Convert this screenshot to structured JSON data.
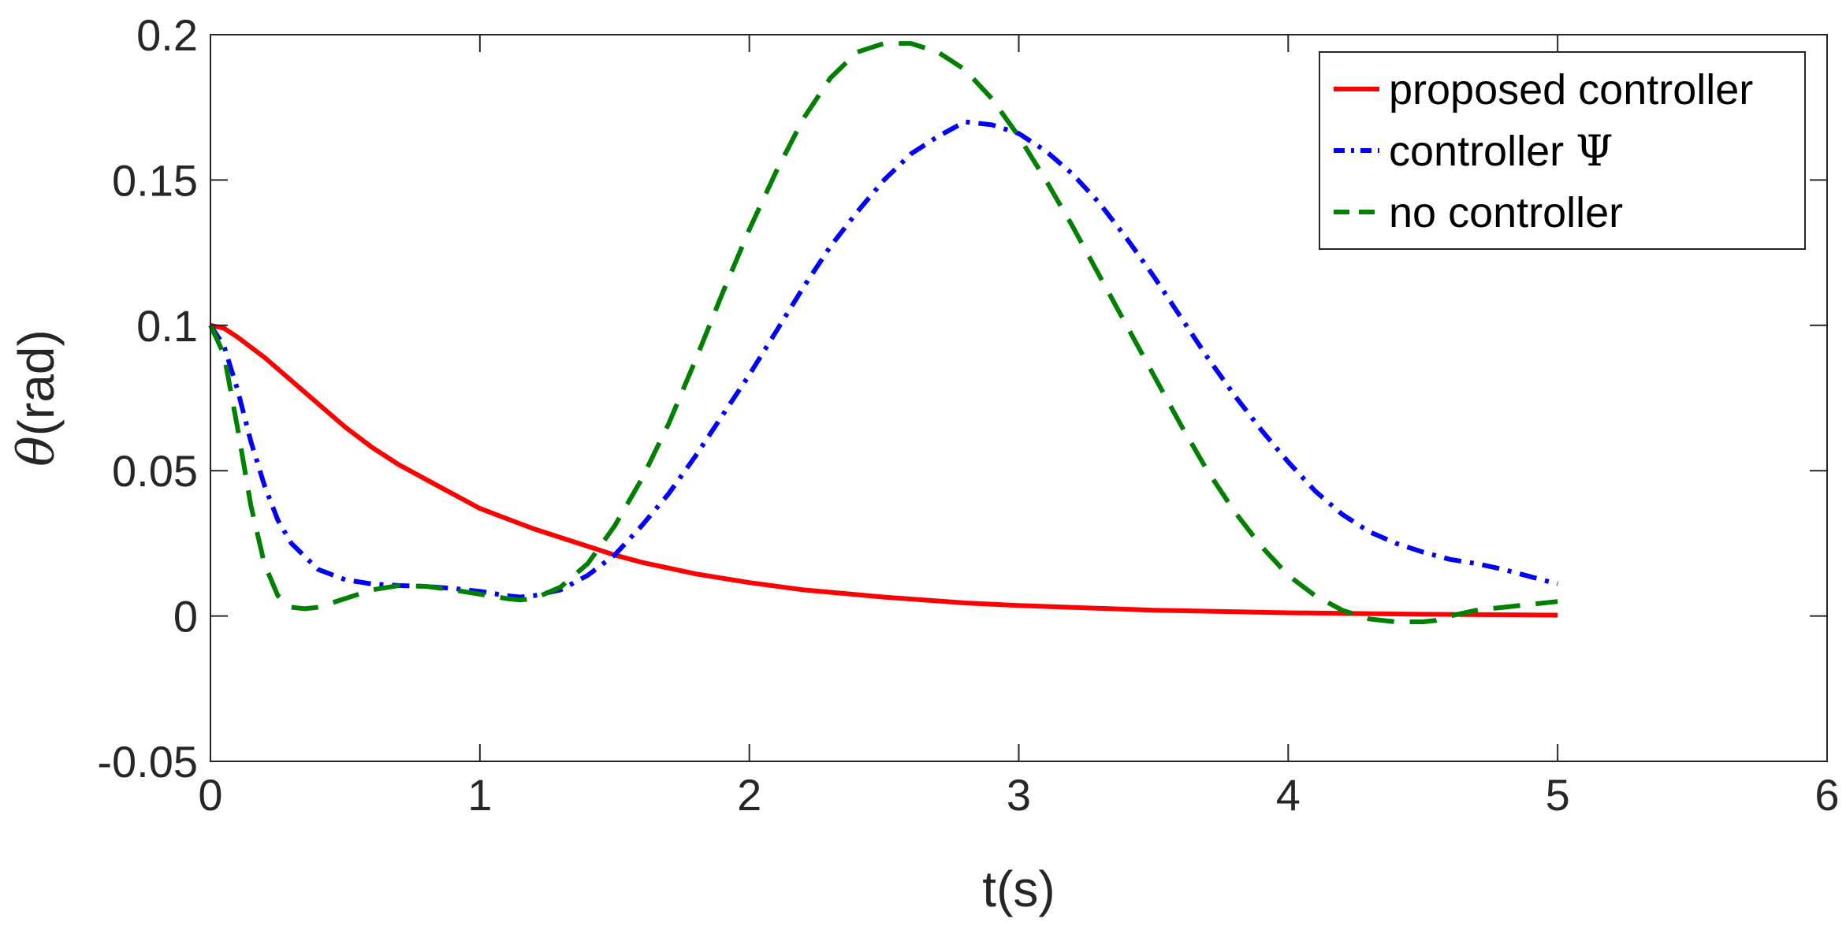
{
  "chart_data": {
    "type": "line",
    "xlabel": "t(s)",
    "ylabel_symbol": "θ",
    "ylabel_rest": "(rad)",
    "xlim": [
      0,
      6
    ],
    "ylim": [
      -0.05,
      0.2
    ],
    "xticks": [
      0,
      1,
      2,
      3,
      4,
      5,
      6
    ],
    "yticks": [
      -0.05,
      0,
      0.05,
      0.1,
      0.15,
      0.2
    ],
    "xtick_labels": [
      "0",
      "1",
      "2",
      "3",
      "4",
      "5",
      "6"
    ],
    "ytick_labels": [
      "-0.05",
      "0",
      "0.05",
      "0.1",
      "0.15",
      "0.2"
    ],
    "grid": false,
    "legend_position": "top-right",
    "series": [
      {
        "name": "proposed controller",
        "color": "#ff0000",
        "style": "solid",
        "x": [
          0,
          0.05,
          0.1,
          0.2,
          0.3,
          0.4,
          0.5,
          0.6,
          0.7,
          0.8,
          0.9,
          1.0,
          1.2,
          1.4,
          1.5,
          1.6,
          1.8,
          2.0,
          2.2,
          2.5,
          2.8,
          3.0,
          3.5,
          4.0,
          4.5,
          5.0
        ],
        "y": [
          0.1,
          0.099,
          0.096,
          0.089,
          0.081,
          0.073,
          0.065,
          0.058,
          0.052,
          0.047,
          0.042,
          0.037,
          0.03,
          0.024,
          0.021,
          0.0185,
          0.0145,
          0.0115,
          0.009,
          0.0065,
          0.0045,
          0.0036,
          0.002,
          0.0011,
          0.0006,
          0.0003
        ]
      },
      {
        "name": "controller Ψ",
        "legend_text": "controller ",
        "legend_symbol": "Ψ",
        "color": "#0000ff",
        "style": "dashdot",
        "x": [
          0,
          0.05,
          0.1,
          0.15,
          0.2,
          0.25,
          0.3,
          0.4,
          0.5,
          0.6,
          0.7,
          0.8,
          0.9,
          1.0,
          1.1,
          1.15,
          1.2,
          1.3,
          1.4,
          1.5,
          1.6,
          1.7,
          1.8,
          1.9,
          2.0,
          2.1,
          2.2,
          2.3,
          2.4,
          2.5,
          2.6,
          2.7,
          2.8,
          2.9,
          3.0,
          3.1,
          3.2,
          3.3,
          3.4,
          3.5,
          3.6,
          3.7,
          3.8,
          3.9,
          4.0,
          4.1,
          4.2,
          4.3,
          4.4,
          4.5,
          4.6,
          4.7,
          4.8,
          4.9,
          5.0
        ],
        "y": [
          0.1,
          0.093,
          0.078,
          0.06,
          0.045,
          0.033,
          0.025,
          0.016,
          0.0125,
          0.011,
          0.0105,
          0.0102,
          0.0095,
          0.0085,
          0.007,
          0.0065,
          0.007,
          0.009,
          0.014,
          0.021,
          0.031,
          0.042,
          0.055,
          0.069,
          0.083,
          0.098,
          0.113,
          0.127,
          0.139,
          0.15,
          0.159,
          0.165,
          0.17,
          0.169,
          0.166,
          0.16,
          0.152,
          0.142,
          0.13,
          0.117,
          0.103,
          0.089,
          0.076,
          0.064,
          0.053,
          0.043,
          0.035,
          0.029,
          0.025,
          0.022,
          0.0195,
          0.018,
          0.016,
          0.0135,
          0.011
        ]
      },
      {
        "name": "no controller",
        "color": "#008000",
        "style": "dashed",
        "x": [
          0,
          0.05,
          0.1,
          0.15,
          0.2,
          0.25,
          0.3,
          0.35,
          0.4,
          0.5,
          0.6,
          0.7,
          0.8,
          0.9,
          1.0,
          1.1,
          1.15,
          1.2,
          1.3,
          1.4,
          1.5,
          1.6,
          1.7,
          1.8,
          1.9,
          2.0,
          2.1,
          2.2,
          2.3,
          2.4,
          2.5,
          2.6,
          2.7,
          2.8,
          2.9,
          3.0,
          3.1,
          3.2,
          3.3,
          3.4,
          3.5,
          3.6,
          3.7,
          3.8,
          3.9,
          4.0,
          4.1,
          4.2,
          4.3,
          4.4,
          4.5,
          4.55,
          4.6,
          4.7,
          4.8,
          4.9,
          5.0
        ],
        "y": [
          0.1,
          0.09,
          0.065,
          0.038,
          0.018,
          0.007,
          0.003,
          0.0025,
          0.003,
          0.006,
          0.009,
          0.0105,
          0.0102,
          0.009,
          0.0075,
          0.006,
          0.0055,
          0.006,
          0.01,
          0.018,
          0.031,
          0.047,
          0.066,
          0.088,
          0.111,
          0.133,
          0.153,
          0.171,
          0.185,
          0.194,
          0.197,
          0.197,
          0.194,
          0.188,
          0.178,
          0.165,
          0.15,
          0.134,
          0.117,
          0.1,
          0.083,
          0.066,
          0.05,
          0.036,
          0.024,
          0.014,
          0.007,
          0.002,
          -0.001,
          -0.002,
          -0.002,
          -0.0015,
          0.0,
          0.002,
          0.003,
          0.004,
          0.005
        ]
      }
    ]
  }
}
